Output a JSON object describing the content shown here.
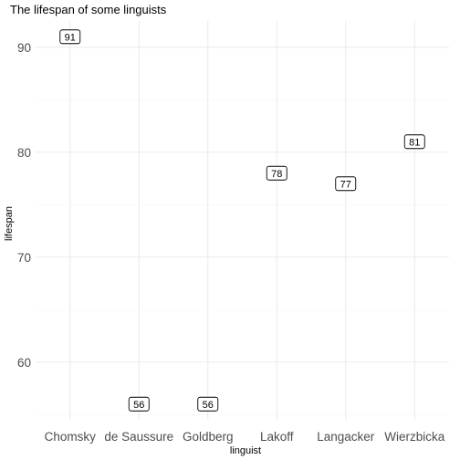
{
  "chart_data": {
    "type": "scatter",
    "title": "The lifespan of some linguists",
    "xlabel": "linguist",
    "ylabel": "lifespan",
    "categories": [
      "Chomsky",
      "de Saussure",
      "Goldberg",
      "Lakoff",
      "Langacker",
      "Wierzbicka"
    ],
    "values": [
      91,
      56,
      56,
      78,
      77,
      81
    ],
    "yticks": [
      60,
      70,
      80,
      90
    ],
    "ylim": [
      54.5,
      92.5
    ],
    "grid": true,
    "legend": "none",
    "colors": {
      "major_grid": "#ebebeb",
      "minor_grid": "#f5f5f5",
      "label_border": "#000000",
      "label_fill": "#ffffff"
    }
  }
}
